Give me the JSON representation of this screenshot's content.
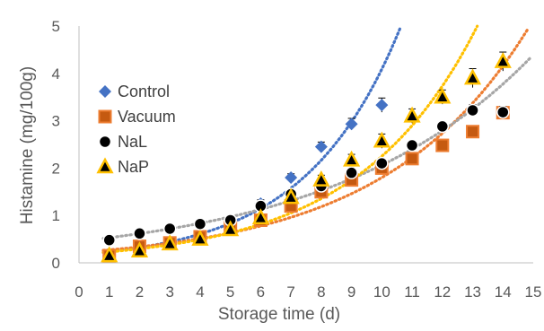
{
  "chart_data": {
    "type": "scatter",
    "title": "",
    "xlabel": "Storage time (d)",
    "ylabel": "Histamine (mg/100g)",
    "xlim": [
      0,
      15
    ],
    "ylim": [
      0,
      5
    ],
    "x_ticks": [
      0,
      1,
      2,
      3,
      4,
      5,
      6,
      7,
      8,
      9,
      10,
      11,
      12,
      13,
      14,
      15
    ],
    "y_ticks": [
      0,
      1,
      2,
      3,
      4,
      5
    ],
    "grid": false,
    "legend_position": "left",
    "trendline": "exponential, dotted",
    "series": [
      {
        "name": "Control",
        "marker": "diamond",
        "color": "#4472C4",
        "x": [
          1,
          2,
          3,
          4,
          5,
          6,
          7,
          8,
          9,
          10
        ],
        "y": [
          0.2,
          0.35,
          0.45,
          0.6,
          0.8,
          1.25,
          1.8,
          2.45,
          2.93,
          3.33
        ],
        "err": [
          0.05,
          0.05,
          0.05,
          0.05,
          0.05,
          0.08,
          0.08,
          0.1,
          0.12,
          0.15
        ]
      },
      {
        "name": "Vacuum",
        "marker": "square",
        "color": "#ED7D31",
        "x": [
          1,
          2,
          3,
          4,
          5,
          6,
          7,
          8,
          9,
          10,
          11,
          12,
          13,
          14
        ],
        "y": [
          0.15,
          0.35,
          0.42,
          0.55,
          0.75,
          0.9,
          1.2,
          1.5,
          1.75,
          2.0,
          2.2,
          2.48,
          2.77,
          3.17
        ],
        "err": [
          0.04,
          0.04,
          0.04,
          0.04,
          0.05,
          0.05,
          0.06,
          0.07,
          0.08,
          0.08,
          0.09,
          0.1,
          0.1,
          0.12
        ]
      },
      {
        "name": "NaL",
        "marker": "circle",
        "color": "#000000",
        "x": [
          1,
          2,
          3,
          4,
          5,
          6,
          7,
          8,
          9,
          10,
          11,
          12,
          13,
          14
        ],
        "y": [
          0.48,
          0.62,
          0.72,
          0.82,
          0.9,
          1.2,
          1.45,
          1.62,
          1.9,
          2.1,
          2.48,
          2.88,
          3.22,
          3.18
        ],
        "err": [
          0.04,
          0.04,
          0.04,
          0.05,
          0.05,
          0.06,
          0.06,
          0.07,
          0.08,
          0.08,
          0.1,
          0.1,
          0.12,
          0.12
        ]
      },
      {
        "name": "NaP",
        "marker": "triangle",
        "color": "#FFC000",
        "x": [
          1,
          2,
          3,
          4,
          5,
          6,
          7,
          8,
          9,
          10,
          11,
          12,
          13,
          14
        ],
        "y": [
          0.15,
          0.25,
          0.4,
          0.5,
          0.7,
          0.95,
          1.38,
          1.75,
          2.17,
          2.57,
          3.1,
          3.5,
          3.9,
          4.25
        ],
        "err": [
          0.04,
          0.04,
          0.04,
          0.05,
          0.05,
          0.06,
          0.08,
          0.1,
          0.12,
          0.15,
          0.15,
          0.15,
          0.2,
          0.2
        ]
      }
    ]
  }
}
